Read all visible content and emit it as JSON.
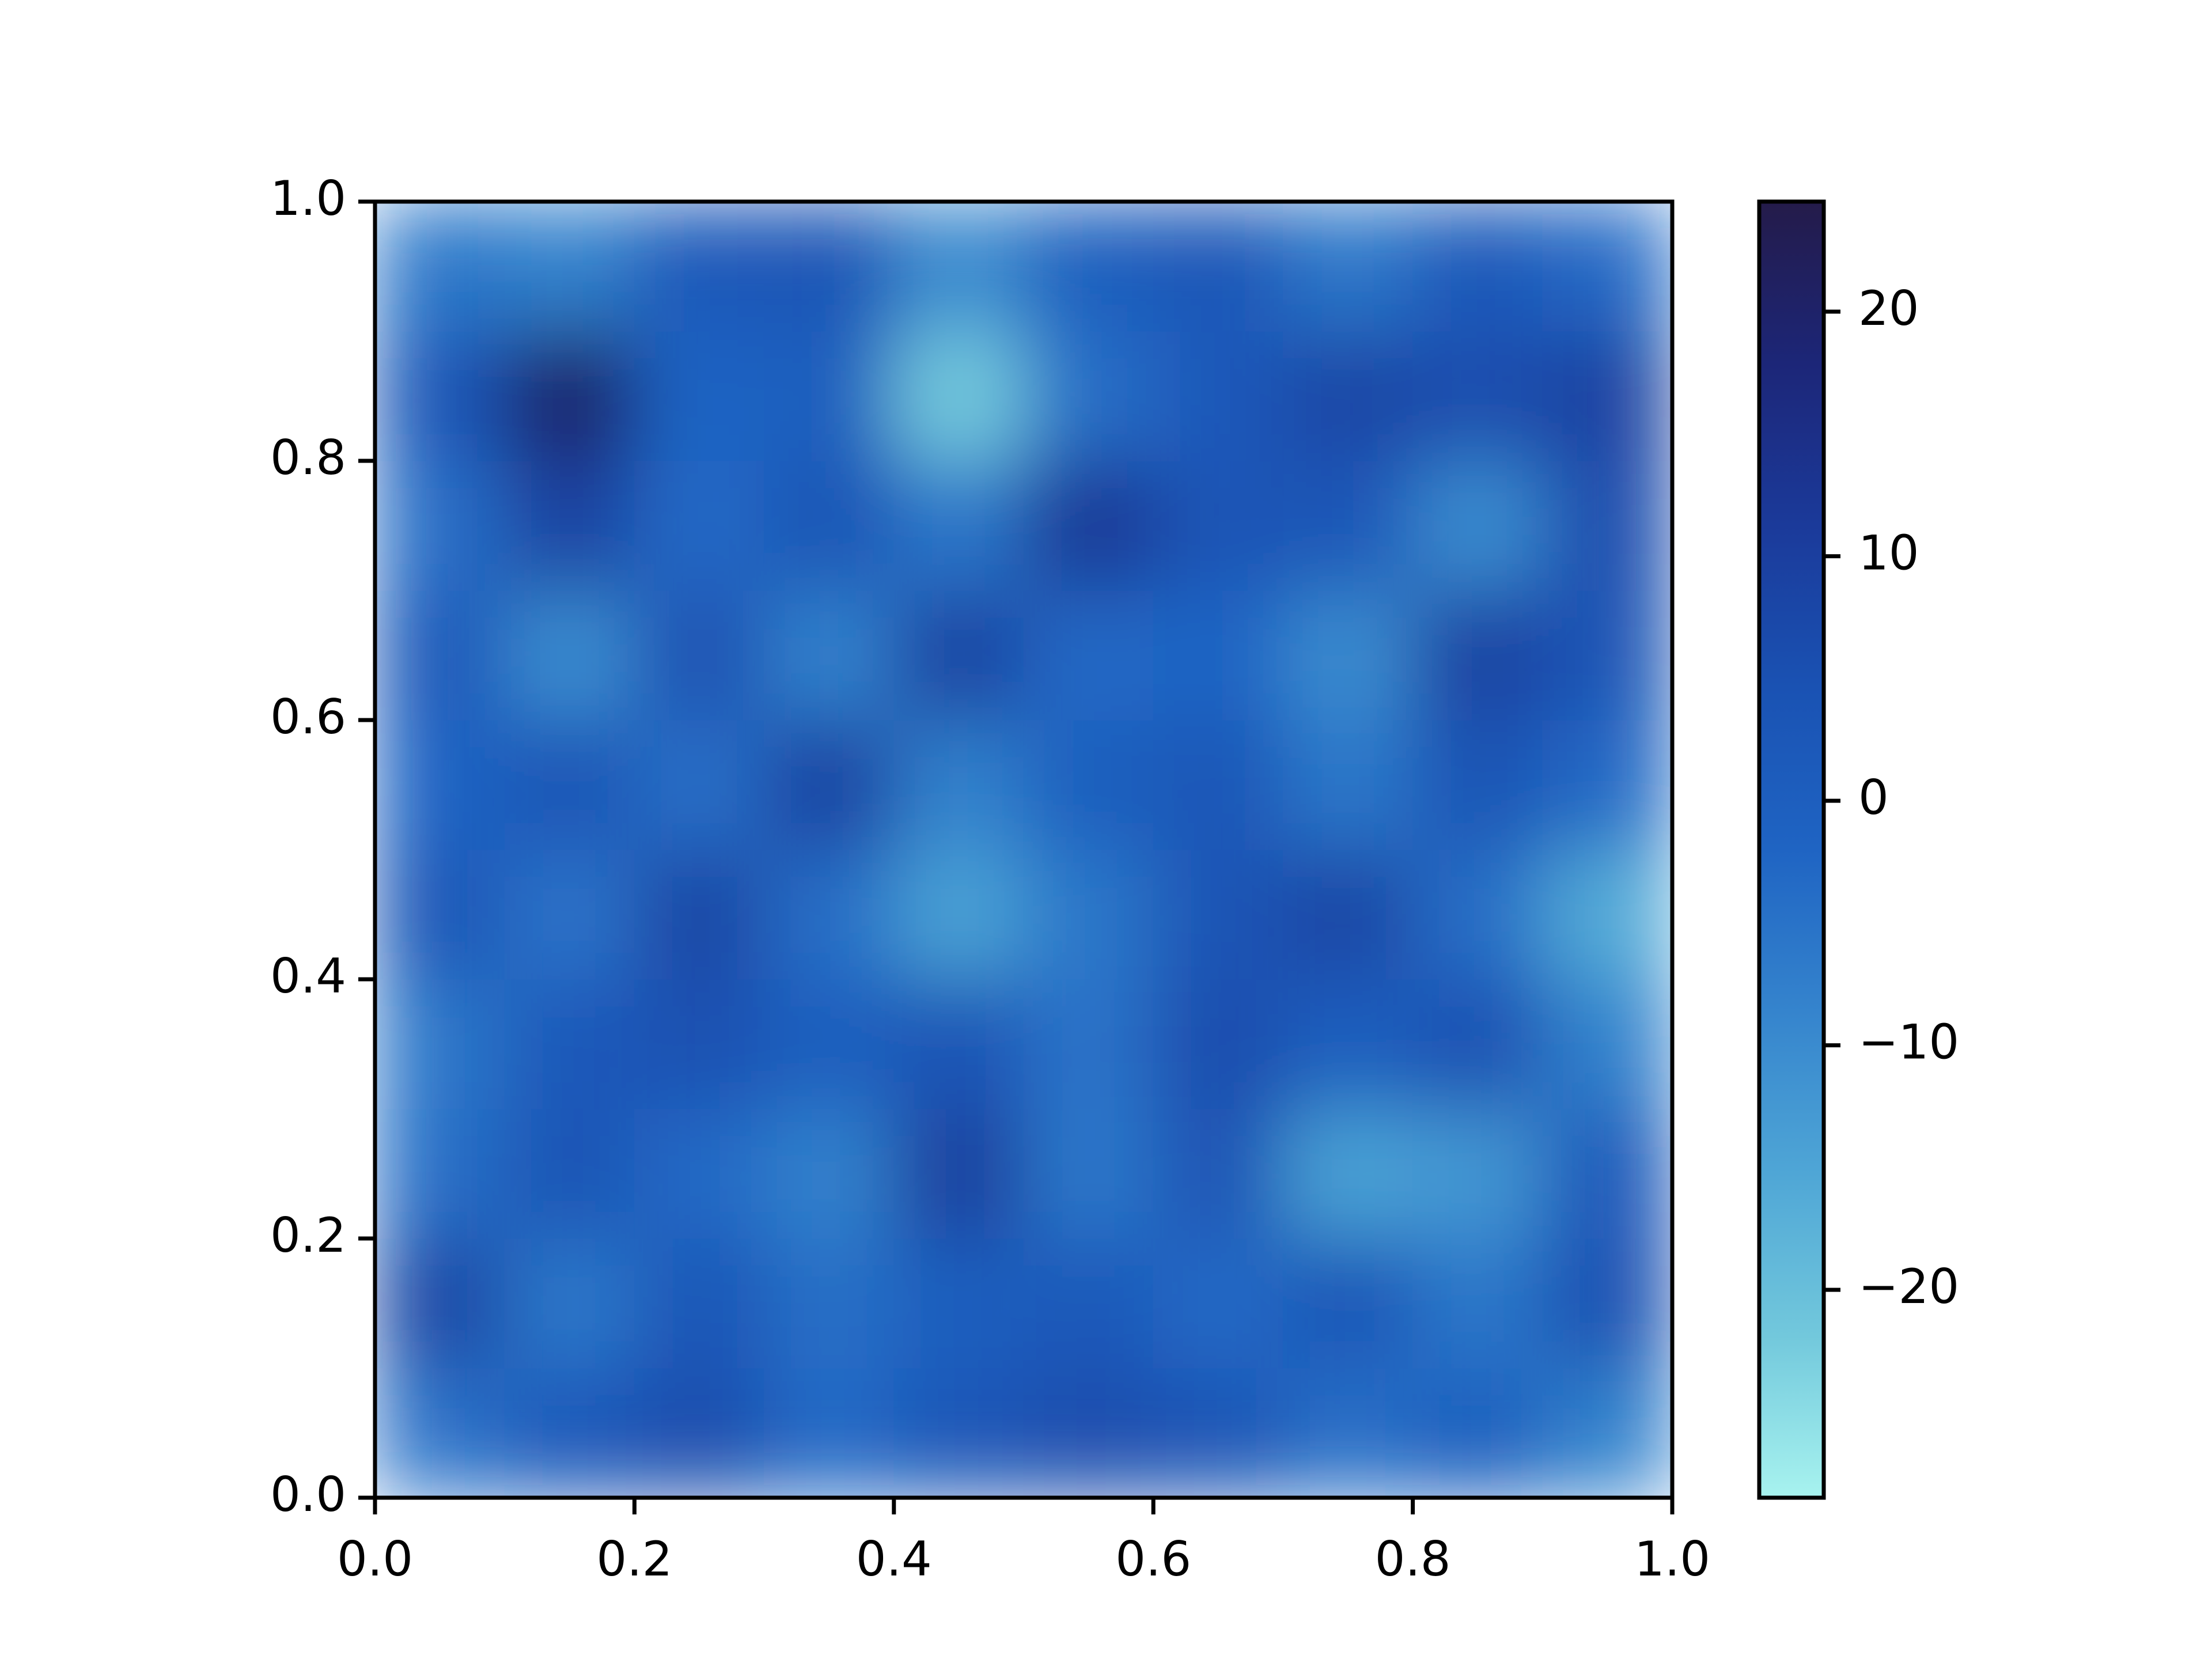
{
  "chart_data": {
    "type": "heatmap",
    "xlim": [
      0,
      1
    ],
    "ylim": [
      0,
      1
    ],
    "xticks": [
      {
        "value": 0,
        "label": "0.0"
      },
      0.2,
      0.4,
      0.6,
      0.8,
      {
        "value": 1,
        "label": "1.0"
      }
    ],
    "yticks": [
      {
        "value": 0,
        "label": "0.0"
      },
      0.2,
      0.4,
      0.6,
      0.8,
      {
        "value": 1,
        "label": "1.0"
      }
    ],
    "clim": [
      -28.5,
      24.5
    ],
    "colorbar_ticks": [
      {
        "value": -20,
        "label": "−20"
      },
      {
        "value": -10,
        "label": "−10"
      },
      0,
      10,
      20
    ],
    "colormap": [
      "#a8f3ef",
      "#72c8dc",
      "#4fa6d6",
      "#3584cd",
      "#1f64c3",
      "#1a52b3",
      "#1b3a9a",
      "#1c2678",
      "#241b4a"
    ],
    "z": [
      [
        -5,
        2,
        6,
        -3,
        3,
        6,
        4,
        -4,
        0,
        -8
      ],
      [
        8,
        -6,
        3,
        -4,
        0,
        2,
        -3,
        3,
        -6,
        5
      ],
      [
        -4,
        4,
        -3,
        -8,
        10,
        -6,
        4,
        -14,
        -12,
        2
      ],
      [
        -6,
        2,
        5,
        0,
        4,
        -5,
        6,
        0,
        5,
        -8
      ],
      [
        3,
        -5,
        8,
        -4,
        -14,
        -6,
        4,
        8,
        -4,
        -16
      ],
      [
        -2,
        4,
        -4,
        9,
        -8,
        0,
        3,
        -6,
        4,
        -3
      ],
      [
        2,
        -10,
        5,
        -8,
        9,
        -3,
        -2,
        -10,
        9,
        4
      ],
      [
        -4,
        9,
        -3,
        4,
        -6,
        12,
        4,
        3,
        -10,
        6
      ],
      [
        3,
        20,
        -2,
        0,
        -22,
        -4,
        2,
        8,
        6,
        9
      ],
      [
        -6,
        -8,
        2,
        4,
        -10,
        0,
        3,
        -6,
        2,
        -3
      ]
    ]
  }
}
